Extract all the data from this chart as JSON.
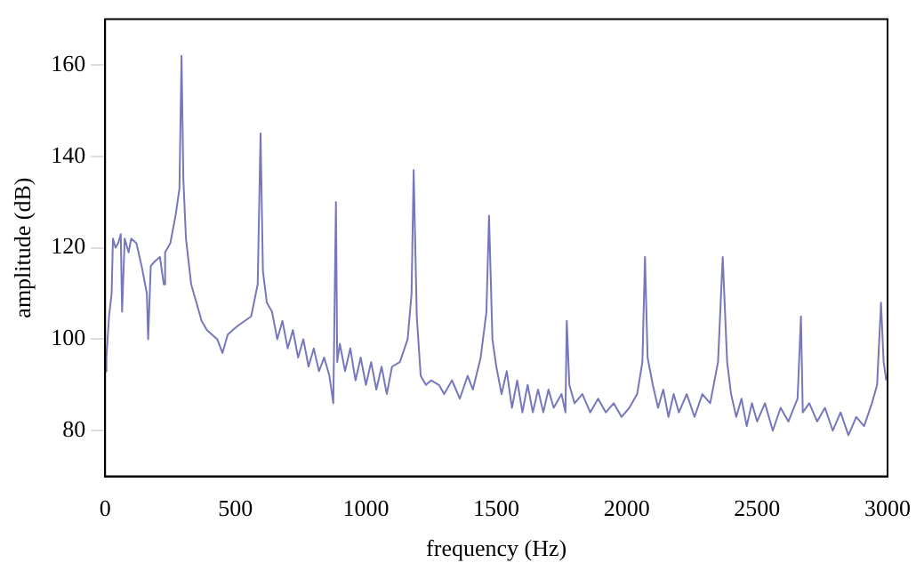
{
  "chart_data": {
    "type": "line",
    "xlabel": "frequency (Hz)",
    "ylabel": "amplitude (dB)",
    "xlim": [
      0,
      3000
    ],
    "xticks": [
      0,
      500,
      1000,
      1500,
      2000,
      2500,
      3000
    ],
    "ylim": [
      70,
      170
    ],
    "yticks": [
      80,
      100,
      120,
      140,
      160
    ],
    "grid": false,
    "legend": false,
    "marker": "none",
    "line_style": "solid",
    "series": [
      {
        "color": "#7777bb",
        "x": [
          0,
          5,
          15,
          25,
          30,
          40,
          50,
          60,
          65,
          75,
          90,
          100,
          120,
          140,
          160,
          165,
          175,
          190,
          210,
          225,
          230,
          250,
          270,
          285,
          293,
          300,
          310,
          330,
          350,
          370,
          390,
          410,
          430,
          450,
          470,
          490,
          510,
          560,
          585,
          596,
          605,
          620,
          640,
          660,
          680,
          700,
          720,
          740,
          760,
          780,
          800,
          820,
          840,
          860,
          875,
          885,
          890,
          900,
          920,
          940,
          960,
          980,
          1000,
          1020,
          1040,
          1060,
          1080,
          1100,
          1130,
          1160,
          1175,
          1183,
          1195,
          1210,
          1230,
          1250,
          1280,
          1300,
          1330,
          1360,
          1390,
          1410,
          1440,
          1462,
          1472,
          1485,
          1500,
          1520,
          1540,
          1560,
          1580,
          1600,
          1620,
          1640,
          1660,
          1680,
          1700,
          1720,
          1750,
          1765,
          1770,
          1780,
          1800,
          1830,
          1860,
          1890,
          1920,
          1950,
          1980,
          2010,
          2040,
          2060,
          2070,
          2080,
          2100,
          2120,
          2140,
          2160,
          2180,
          2200,
          2230,
          2260,
          2290,
          2320,
          2350,
          2368,
          2385,
          2400,
          2420,
          2440,
          2460,
          2480,
          2500,
          2530,
          2560,
          2590,
          2620,
          2655,
          2668,
          2675,
          2700,
          2730,
          2760,
          2790,
          2820,
          2850,
          2880,
          2910,
          2940,
          2960,
          2975,
          2985,
          2995
        ],
        "values": [
          93,
          96,
          105,
          110,
          122,
          120,
          121,
          123,
          106,
          122,
          119,
          122,
          121,
          116,
          110,
          100,
          116,
          117,
          118,
          112,
          119,
          121,
          127,
          133,
          162,
          135,
          122,
          112,
          108,
          104,
          102,
          101,
          100,
          97,
          101,
          102,
          103,
          105,
          112,
          145,
          115,
          108,
          106,
          100,
          104,
          98,
          102,
          96,
          100,
          94,
          98,
          93,
          96,
          92,
          86,
          130,
          95,
          99,
          93,
          98,
          91,
          96,
          90,
          95,
          89,
          94,
          88,
          94,
          95,
          100,
          110,
          137,
          105,
          92,
          90,
          91,
          90,
          88,
          91,
          87,
          92,
          89,
          96,
          106,
          127,
          100,
          94,
          88,
          93,
          85,
          91,
          84,
          90,
          84,
          89,
          84,
          89,
          85,
          88,
          84,
          104,
          90,
          86,
          88,
          84,
          87,
          84,
          86,
          83,
          85,
          88,
          95,
          118,
          96,
          90,
          85,
          89,
          83,
          88,
          84,
          88,
          83,
          88,
          86,
          95,
          118,
          95,
          88,
          83,
          87,
          81,
          86,
          82,
          86,
          80,
          85,
          82,
          87,
          105,
          84,
          86,
          82,
          85,
          80,
          84,
          79,
          83,
          81,
          86,
          90,
          108,
          95,
          91
        ]
      }
    ]
  }
}
